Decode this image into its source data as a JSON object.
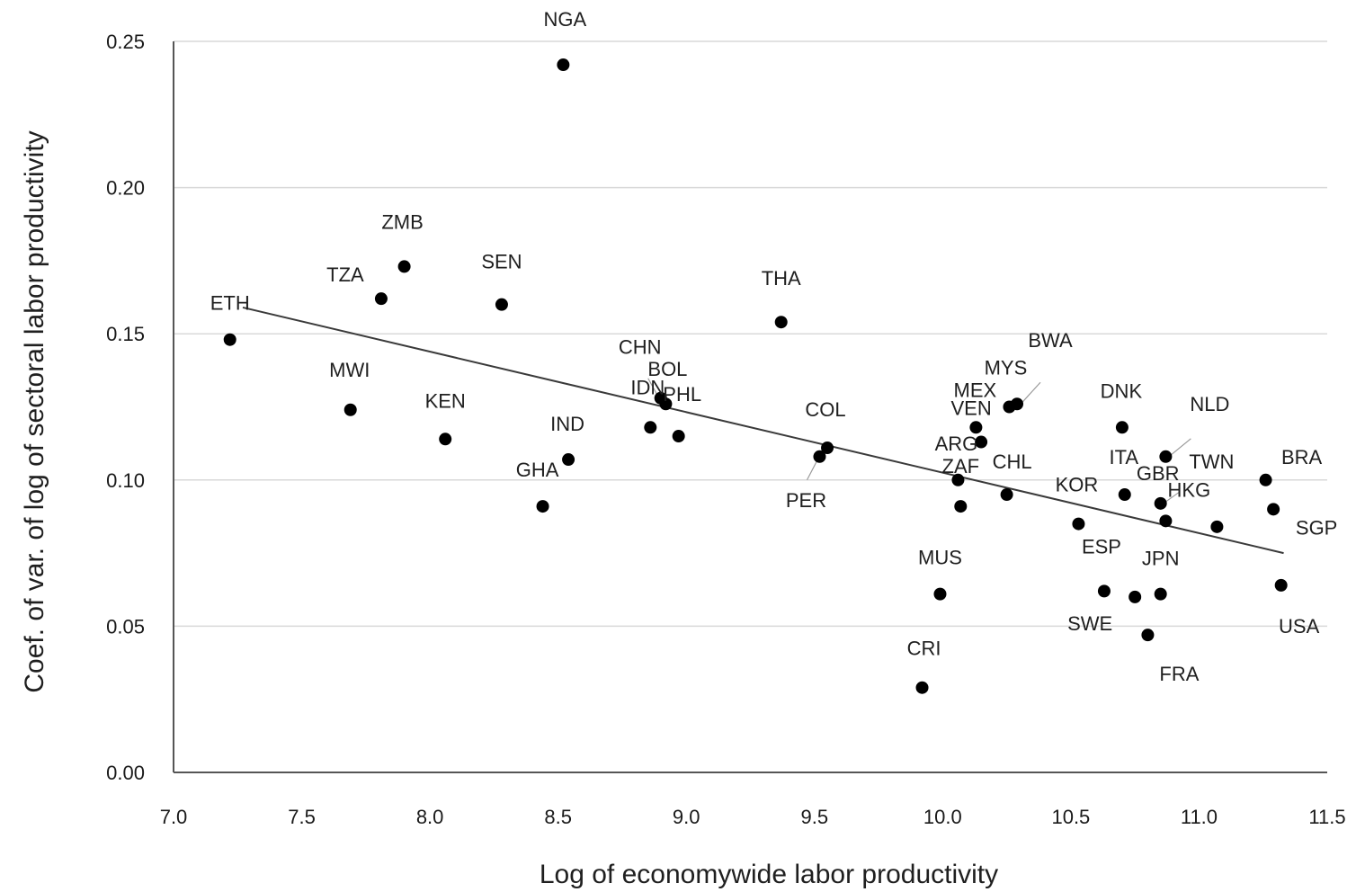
{
  "chart_data": {
    "type": "scatter",
    "xlabel": "Log of economywide labor productivity",
    "ylabel": "Coef. of var. of log of sectoral labor productivity",
    "xlim": [
      7.0,
      11.5
    ],
    "ylim": [
      0.0,
      0.25
    ],
    "xticks": [
      "7.0",
      "7.5",
      "8.0",
      "8.5",
      "9.0",
      "9.5",
      "10.0",
      "10.5",
      "11.0",
      "11.5"
    ],
    "yticks": [
      "0.00",
      "0.05",
      "0.10",
      "0.15",
      "0.20",
      "0.25"
    ],
    "grid": "horizontal",
    "legend": "none",
    "points": [
      {
        "label": "NGA",
        "x": 8.52,
        "y": 0.242
      },
      {
        "label": "ZMB",
        "x": 7.9,
        "y": 0.173
      },
      {
        "label": "TZA",
        "x": 7.81,
        "y": 0.162
      },
      {
        "label": "SEN",
        "x": 8.28,
        "y": 0.16
      },
      {
        "label": "THA",
        "x": 9.37,
        "y": 0.154
      },
      {
        "label": "ETH",
        "x": 7.22,
        "y": 0.148
      },
      {
        "label": "MWI",
        "x": 7.69,
        "y": 0.124
      },
      {
        "label": "KEN",
        "x": 8.06,
        "y": 0.114
      },
      {
        "label": "CHN",
        "x": 8.9,
        "y": 0.128
      },
      {
        "label": "BOL",
        "x": 8.92,
        "y": 0.126
      },
      {
        "label": "IDN",
        "x": 8.86,
        "y": 0.118
      },
      {
        "label": "PHL",
        "x": 8.97,
        "y": 0.115
      },
      {
        "label": "IND",
        "x": 8.54,
        "y": 0.107
      },
      {
        "label": "GHA",
        "x": 8.44,
        "y": 0.091
      },
      {
        "label": "COL",
        "x": 9.55,
        "y": 0.111
      },
      {
        "label": "PER",
        "x": 9.52,
        "y": 0.108
      },
      {
        "label": "BWA",
        "x": 10.29,
        "y": 0.126
      },
      {
        "label": "MYS",
        "x": 10.26,
        "y": 0.125
      },
      {
        "label": "MEX",
        "x": 10.13,
        "y": 0.118
      },
      {
        "label": "VEN",
        "x": 10.15,
        "y": 0.113
      },
      {
        "label": "ARG",
        "x": 10.06,
        "y": 0.1
      },
      {
        "label": "ZAF",
        "x": 10.07,
        "y": 0.091
      },
      {
        "label": "CHL",
        "x": 10.25,
        "y": 0.095
      },
      {
        "label": "MUS",
        "x": 9.99,
        "y": 0.061
      },
      {
        "label": "CRI",
        "x": 9.92,
        "y": 0.029
      },
      {
        "label": "KOR",
        "x": 10.53,
        "y": 0.085
      },
      {
        "label": "ESP",
        "x": 10.63,
        "y": 0.062
      },
      {
        "label": "SWE",
        "x": 10.75,
        "y": 0.06
      },
      {
        "label": "DNK",
        "x": 10.7,
        "y": 0.118
      },
      {
        "label": "ITA",
        "x": 10.71,
        "y": 0.095
      },
      {
        "label": "NLD",
        "x": 10.87,
        "y": 0.108
      },
      {
        "label": "GBR",
        "x": 10.85,
        "y": 0.092
      },
      {
        "label": "HKG",
        "x": 10.87,
        "y": 0.086
      },
      {
        "label": "TWN",
        "x": 11.07,
        "y": 0.084
      },
      {
        "label": "JPN",
        "x": 10.85,
        "y": 0.061
      },
      {
        "label": "FRA",
        "x": 10.8,
        "y": 0.047
      },
      {
        "label": "BRA",
        "x": 11.26,
        "y": 0.1
      },
      {
        "label": "SGP",
        "x": 11.29,
        "y": 0.09
      },
      {
        "label": "USA",
        "x": 11.32,
        "y": 0.064
      }
    ],
    "trendline": {
      "x": [
        7.27,
        11.33
      ],
      "y": [
        0.159,
        0.075
      ]
    }
  }
}
